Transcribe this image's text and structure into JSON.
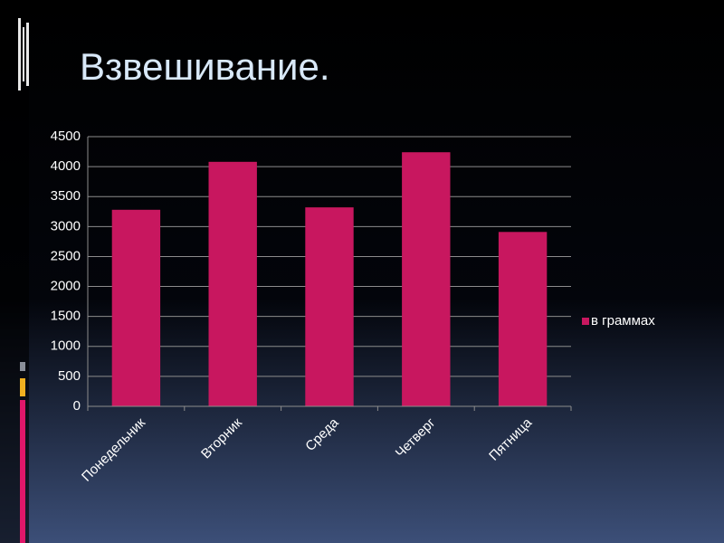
{
  "chart_data": {
    "type": "bar",
    "title": "Взвешивание.",
    "categories": [
      "Понедельник",
      "Вторник",
      "Среда",
      "Четверг",
      "Пятница"
    ],
    "series": [
      {
        "name": "в граммах",
        "color": "#c8175f",
        "values": [
          3280,
          4080,
          3320,
          4240,
          2910
        ]
      }
    ],
    "ylim": [
      0,
      4500
    ],
    "yticks": [
      0,
      500,
      1000,
      1500,
      2000,
      2500,
      3000,
      3500,
      4000,
      4500
    ],
    "grid": true,
    "legend": "right"
  }
}
